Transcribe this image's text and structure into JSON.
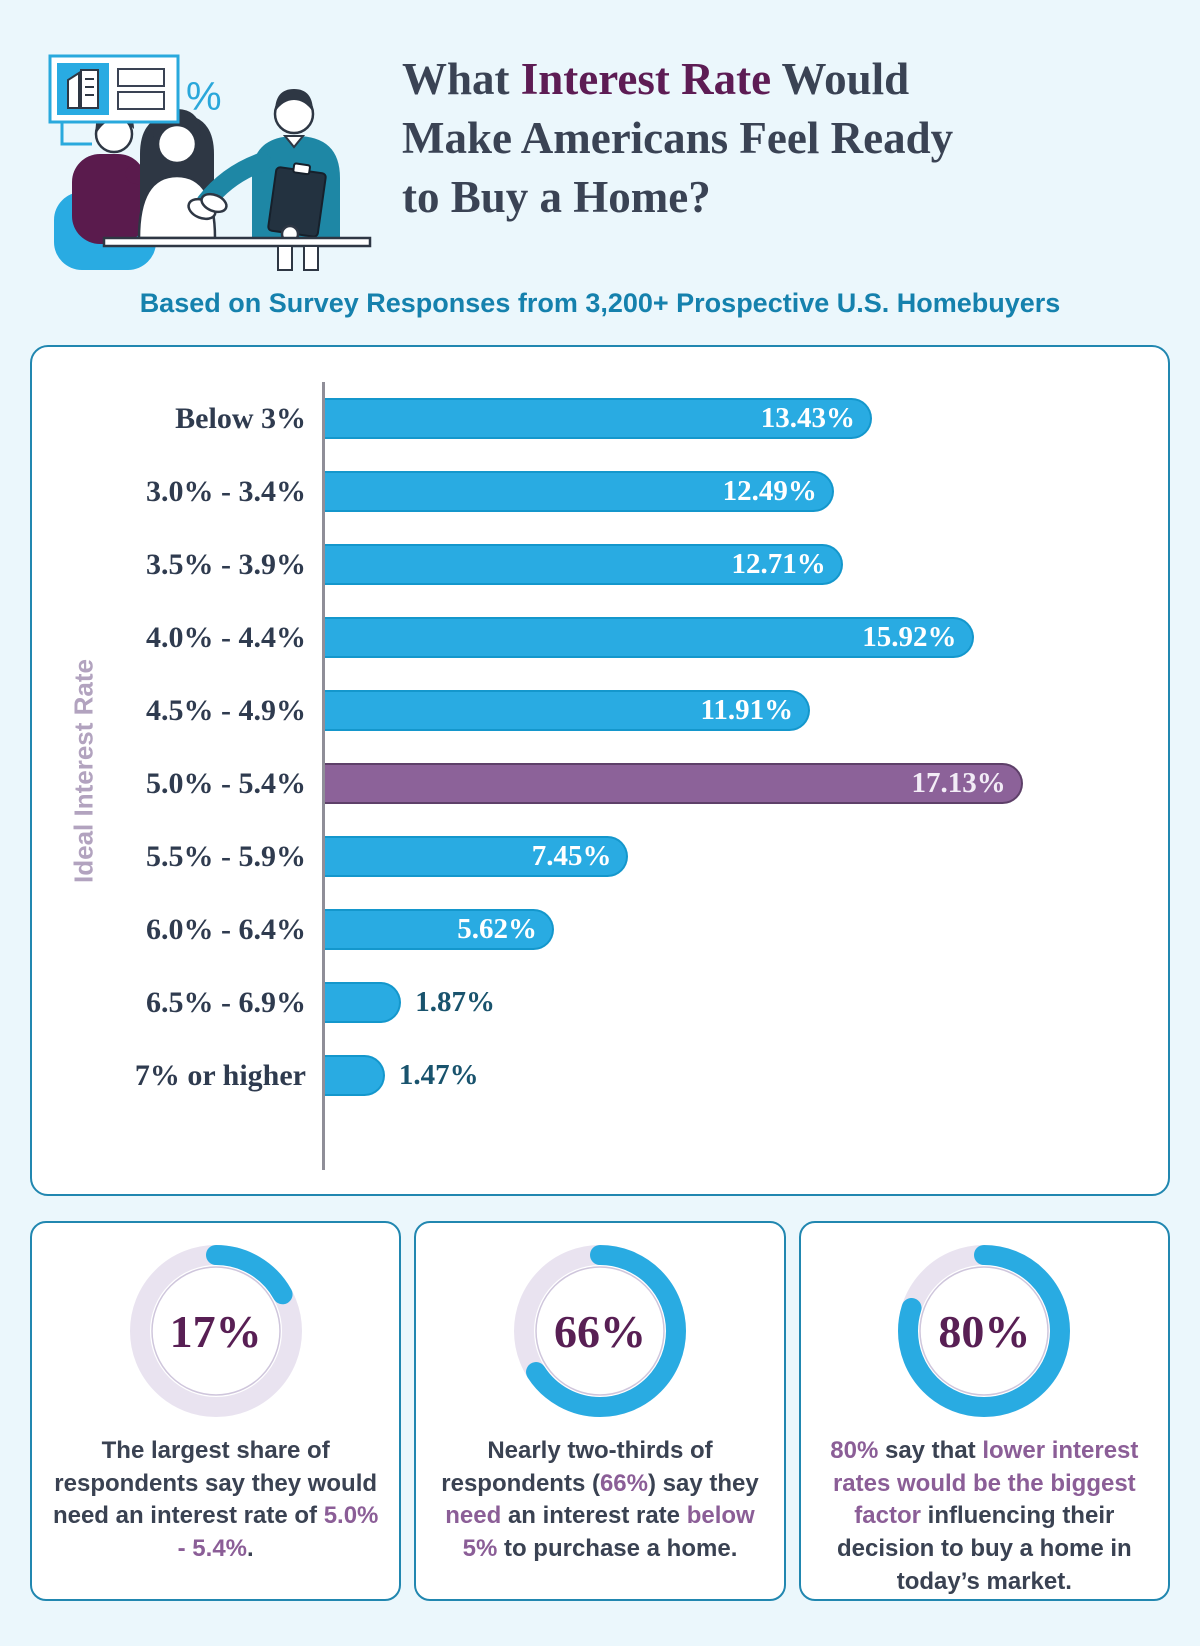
{
  "header": {
    "title_lines": [
      [
        {
          "t": "What ",
          "hl": false
        },
        {
          "t": "Interest Rate",
          "hl": true
        },
        {
          "t": " Would",
          "hl": false
        }
      ],
      [
        {
          "t": "Make Americans Feel Ready",
          "hl": false
        }
      ],
      [
        {
          "t": "to Buy a Home?",
          "hl": false
        }
      ]
    ],
    "subtitle": "Based on Survey Responses from 3,200+ Prospective U.S. Homebuyers",
    "icon_percent": "%"
  },
  "chart_data": {
    "type": "bar",
    "orientation": "horizontal",
    "ylabel": "Ideal Interest Rate",
    "categories": [
      "Below 3%",
      "3.0% - 3.4%",
      "3.5% - 3.9%",
      "4.0% - 4.4%",
      "4.5% - 4.9%",
      "5.0% - 5.4%",
      "5.5% - 5.9%",
      "6.0% - 6.4%",
      "6.5% - 6.9%",
      "7% or higher"
    ],
    "values": [
      13.43,
      12.49,
      12.71,
      15.92,
      11.91,
      17.13,
      7.45,
      5.62,
      1.87,
      1.47
    ],
    "value_labels": [
      "13.43%",
      "12.49%",
      "12.71%",
      "15.92%",
      "11.91%",
      "17.13%",
      "7.45%",
      "5.62%",
      "1.87%",
      "1.47%"
    ],
    "highlight_index": 5,
    "xlim": [
      0,
      20.4
    ],
    "outside_label_threshold": 4,
    "grid": false,
    "legend": false,
    "bar_color": "#29abe2",
    "highlight_color": "#8c6299"
  },
  "stat_cards": [
    {
      "percent": 17,
      "label": "17%",
      "segments": [
        {
          "t": "The largest share of respondents say they would need an interest rate of ",
          "b": false
        },
        {
          "t": "5.0% - 5.4%",
          "b": true
        },
        {
          "t": ".",
          "b": false
        }
      ]
    },
    {
      "percent": 66,
      "label": "66%",
      "segments": [
        {
          "t": "Nearly two-thirds of respondents (",
          "b": false
        },
        {
          "t": "66%",
          "b": true
        },
        {
          "t": ") say they ",
          "b": false
        },
        {
          "t": "need",
          "b": true
        },
        {
          "t": " an interest rate ",
          "b": false
        },
        {
          "t": "below 5%",
          "b": true
        },
        {
          "t": " to purchase a home.",
          "b": false
        }
      ]
    },
    {
      "percent": 80,
      "label": "80%",
      "segments": [
        {
          "t": "80%",
          "b": true
        },
        {
          "t": " say that ",
          "b": false
        },
        {
          "t": "lower interest rates would be the biggest factor",
          "b": true
        },
        {
          "t": " influencing their decision to buy a home in today’s market.",
          "b": false
        }
      ]
    }
  ],
  "colors": {
    "background": "#ebf7fc",
    "accent_blue": "#29abe2",
    "accent_purple": "#8c6299",
    "title_dark": "#3a4354",
    "title_highlight": "#5d1c54",
    "subtitle_teal": "#1581ad",
    "panel_border": "#2187b0",
    "axis": "#8f8e98",
    "donut_track": "#e9e3f0",
    "donut_value": "#581f54",
    "body_text": "#3a4252",
    "purple_bold": "#8b5e97",
    "outside_value": "#19536d"
  }
}
